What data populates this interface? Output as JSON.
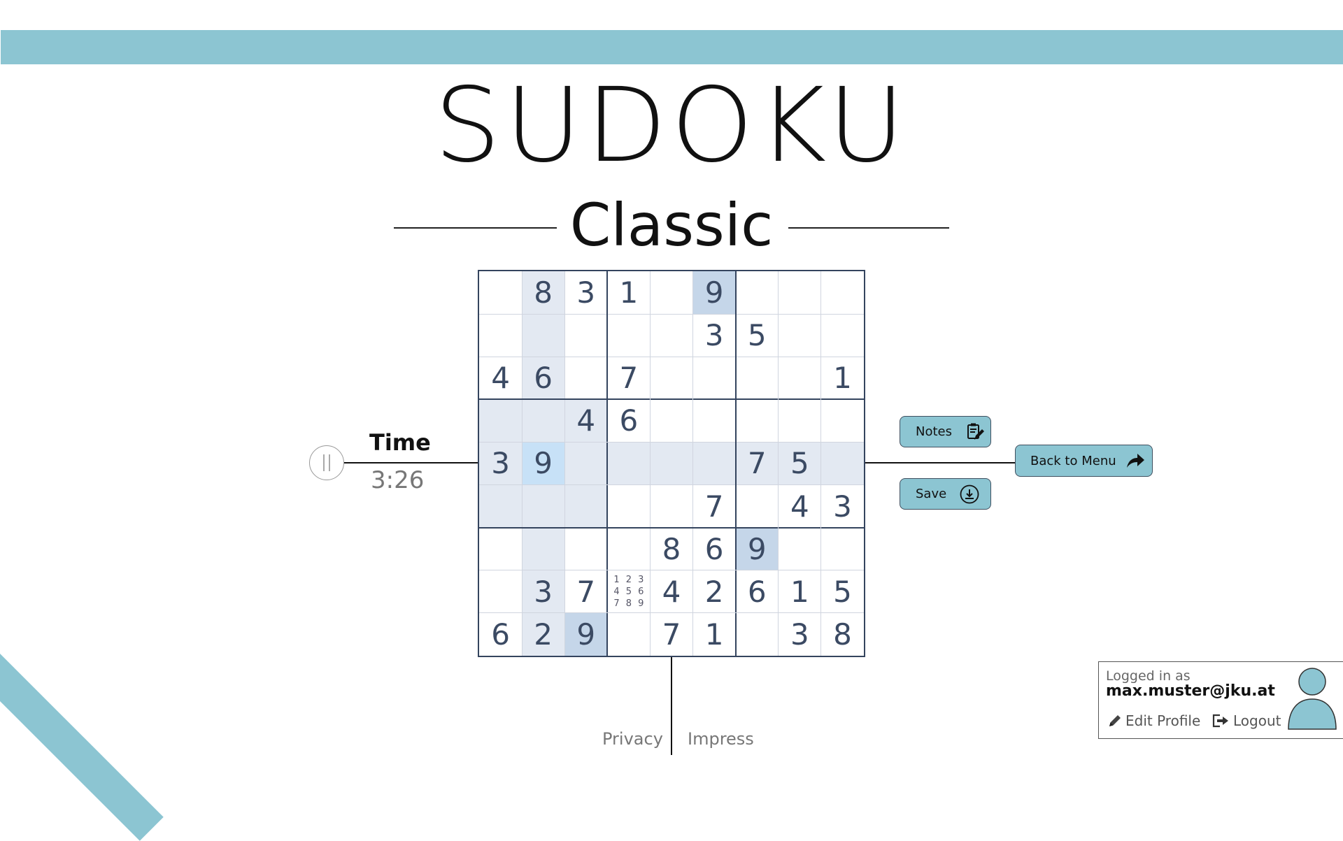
{
  "header": {
    "title": "SUDOKU",
    "mode": "Classic"
  },
  "timer": {
    "label": "Time",
    "value": "3:26"
  },
  "board": {
    "grid": [
      [
        0,
        8,
        3,
        1,
        0,
        9,
        0,
        0,
        0
      ],
      [
        0,
        0,
        0,
        0,
        0,
        3,
        5,
        0,
        0
      ],
      [
        4,
        6,
        0,
        7,
        0,
        0,
        0,
        0,
        1
      ],
      [
        0,
        0,
        4,
        6,
        0,
        0,
        0,
        0,
        0
      ],
      [
        3,
        9,
        0,
        0,
        0,
        0,
        7,
        5,
        0
      ],
      [
        0,
        0,
        0,
        0,
        0,
        7,
        0,
        4,
        3
      ],
      [
        0,
        0,
        0,
        0,
        8,
        6,
        9,
        0,
        0
      ],
      [
        0,
        3,
        7,
        0,
        4,
        2,
        6,
        1,
        5
      ],
      [
        6,
        2,
        9,
        0,
        7,
        1,
        0,
        3,
        8
      ]
    ],
    "selected": [
      4,
      1
    ],
    "same_value": 9,
    "notes_cell": {
      "row": 7,
      "col": 3,
      "values": [
        "1",
        "2",
        "3",
        "4",
        "5",
        "6",
        "7",
        "8",
        "9"
      ]
    }
  },
  "actions": {
    "notes_label": "Notes",
    "save_label": "Save",
    "back_label": "Back to Menu"
  },
  "footer": {
    "privacy": "Privacy",
    "impress": "Impress"
  },
  "user": {
    "logged_in_label": "Logged in as",
    "email": "max.muster@jku.at",
    "edit_label": "Edit Profile",
    "logout_label": "Logout"
  },
  "colors": {
    "accent": "#8cc5d2",
    "grid": "#34445e",
    "highlight": "#e3e9f2",
    "selected": "#c7e1f7",
    "same_value": "#c5d6e9"
  }
}
